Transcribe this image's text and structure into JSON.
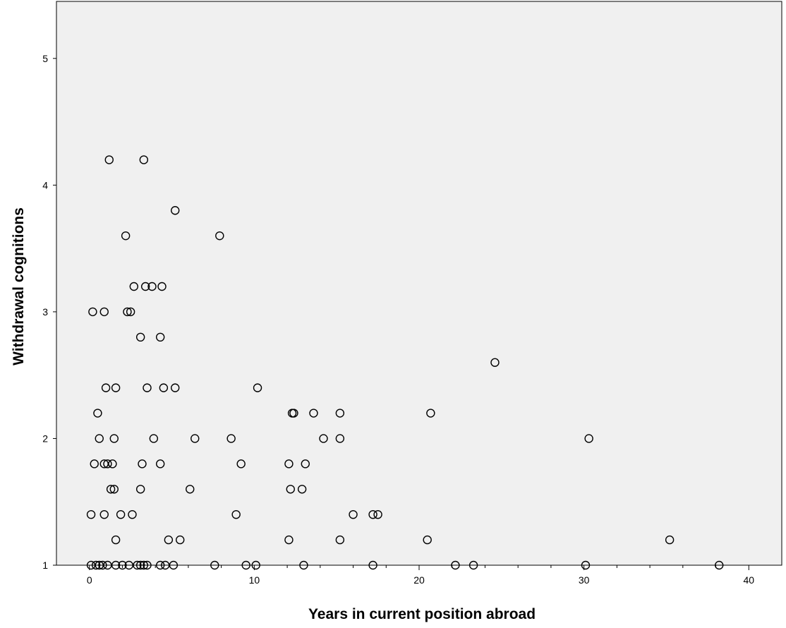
{
  "chart_data": {
    "type": "scatter",
    "title": "",
    "xlabel": "Years in current position abroad",
    "ylabel": "Withdrawal cognitions",
    "xlim": [
      -2,
      42
    ],
    "ylim": [
      1,
      5.45
    ],
    "x_ticks": [
      0,
      10,
      20,
      30,
      40
    ],
    "x_tick_labels": [
      "0",
      "10",
      "20",
      "30",
      "40"
    ],
    "y_ticks": [
      1,
      2,
      3,
      4,
      5
    ],
    "y_tick_labels": [
      "1",
      "2",
      "3",
      "4",
      "5"
    ],
    "grid": false,
    "legend": "none",
    "colors": {
      "plot_background": "#f0f0f0",
      "marker_stroke": "#000000",
      "axis": "#000000"
    },
    "points": [
      {
        "x": 1.2,
        "y": 4.2
      },
      {
        "x": 3.3,
        "y": 4.2
      },
      {
        "x": 5.2,
        "y": 3.8
      },
      {
        "x": 2.2,
        "y": 3.6
      },
      {
        "x": 7.9,
        "y": 3.6
      },
      {
        "x": 2.7,
        "y": 3.2
      },
      {
        "x": 3.4,
        "y": 3.2
      },
      {
        "x": 3.8,
        "y": 3.2
      },
      {
        "x": 4.4,
        "y": 3.2
      },
      {
        "x": 0.2,
        "y": 3.0
      },
      {
        "x": 0.9,
        "y": 3.0
      },
      {
        "x": 2.3,
        "y": 3.0
      },
      {
        "x": 2.5,
        "y": 3.0
      },
      {
        "x": 3.1,
        "y": 2.8
      },
      {
        "x": 4.3,
        "y": 2.8
      },
      {
        "x": 24.6,
        "y": 2.6
      },
      {
        "x": 1.0,
        "y": 2.4
      },
      {
        "x": 1.6,
        "y": 2.4
      },
      {
        "x": 3.5,
        "y": 2.4
      },
      {
        "x": 4.5,
        "y": 2.4
      },
      {
        "x": 5.2,
        "y": 2.4
      },
      {
        "x": 10.2,
        "y": 2.4
      },
      {
        "x": 0.5,
        "y": 2.2
      },
      {
        "x": 12.3,
        "y": 2.2
      },
      {
        "x": 12.4,
        "y": 2.2
      },
      {
        "x": 13.6,
        "y": 2.2
      },
      {
        "x": 15.2,
        "y": 2.2
      },
      {
        "x": 20.7,
        "y": 2.2
      },
      {
        "x": 0.6,
        "y": 2.0
      },
      {
        "x": 1.5,
        "y": 2.0
      },
      {
        "x": 3.9,
        "y": 2.0
      },
      {
        "x": 6.4,
        "y": 2.0
      },
      {
        "x": 8.6,
        "y": 2.0
      },
      {
        "x": 14.2,
        "y": 2.0
      },
      {
        "x": 15.2,
        "y": 2.0
      },
      {
        "x": 30.3,
        "y": 2.0
      },
      {
        "x": 0.3,
        "y": 1.8
      },
      {
        "x": 0.9,
        "y": 1.8
      },
      {
        "x": 1.1,
        "y": 1.8
      },
      {
        "x": 1.4,
        "y": 1.8
      },
      {
        "x": 3.2,
        "y": 1.8
      },
      {
        "x": 4.3,
        "y": 1.8
      },
      {
        "x": 9.2,
        "y": 1.8
      },
      {
        "x": 12.1,
        "y": 1.8
      },
      {
        "x": 13.1,
        "y": 1.8
      },
      {
        "x": 1.3,
        "y": 1.6
      },
      {
        "x": 1.5,
        "y": 1.6
      },
      {
        "x": 3.1,
        "y": 1.6
      },
      {
        "x": 6.1,
        "y": 1.6
      },
      {
        "x": 12.2,
        "y": 1.6
      },
      {
        "x": 12.9,
        "y": 1.6
      },
      {
        "x": 0.1,
        "y": 1.4
      },
      {
        "x": 0.9,
        "y": 1.4
      },
      {
        "x": 1.9,
        "y": 1.4
      },
      {
        "x": 2.6,
        "y": 1.4
      },
      {
        "x": 8.9,
        "y": 1.4
      },
      {
        "x": 16.0,
        "y": 1.4
      },
      {
        "x": 17.2,
        "y": 1.4
      },
      {
        "x": 17.5,
        "y": 1.4
      },
      {
        "x": 1.6,
        "y": 1.2
      },
      {
        "x": 4.8,
        "y": 1.2
      },
      {
        "x": 5.5,
        "y": 1.2
      },
      {
        "x": 12.1,
        "y": 1.2
      },
      {
        "x": 15.2,
        "y": 1.2
      },
      {
        "x": 20.5,
        "y": 1.2
      },
      {
        "x": 35.2,
        "y": 1.2
      },
      {
        "x": 0.1,
        "y": 1.0
      },
      {
        "x": 0.4,
        "y": 1.0
      },
      {
        "x": 0.6,
        "y": 1.0
      },
      {
        "x": 0.8,
        "y": 1.0
      },
      {
        "x": 1.1,
        "y": 1.0
      },
      {
        "x": 1.6,
        "y": 1.0
      },
      {
        "x": 2.0,
        "y": 1.0
      },
      {
        "x": 2.4,
        "y": 1.0
      },
      {
        "x": 2.9,
        "y": 1.0
      },
      {
        "x": 3.1,
        "y": 1.0
      },
      {
        "x": 3.3,
        "y": 1.0
      },
      {
        "x": 3.5,
        "y": 1.0
      },
      {
        "x": 4.3,
        "y": 1.0
      },
      {
        "x": 4.6,
        "y": 1.0
      },
      {
        "x": 5.1,
        "y": 1.0
      },
      {
        "x": 7.6,
        "y": 1.0
      },
      {
        "x": 9.5,
        "y": 1.0
      },
      {
        "x": 10.1,
        "y": 1.0
      },
      {
        "x": 13.0,
        "y": 1.0
      },
      {
        "x": 17.2,
        "y": 1.0
      },
      {
        "x": 22.2,
        "y": 1.0
      },
      {
        "x": 23.3,
        "y": 1.0
      },
      {
        "x": 30.1,
        "y": 1.0
      },
      {
        "x": 38.2,
        "y": 1.0
      }
    ]
  }
}
